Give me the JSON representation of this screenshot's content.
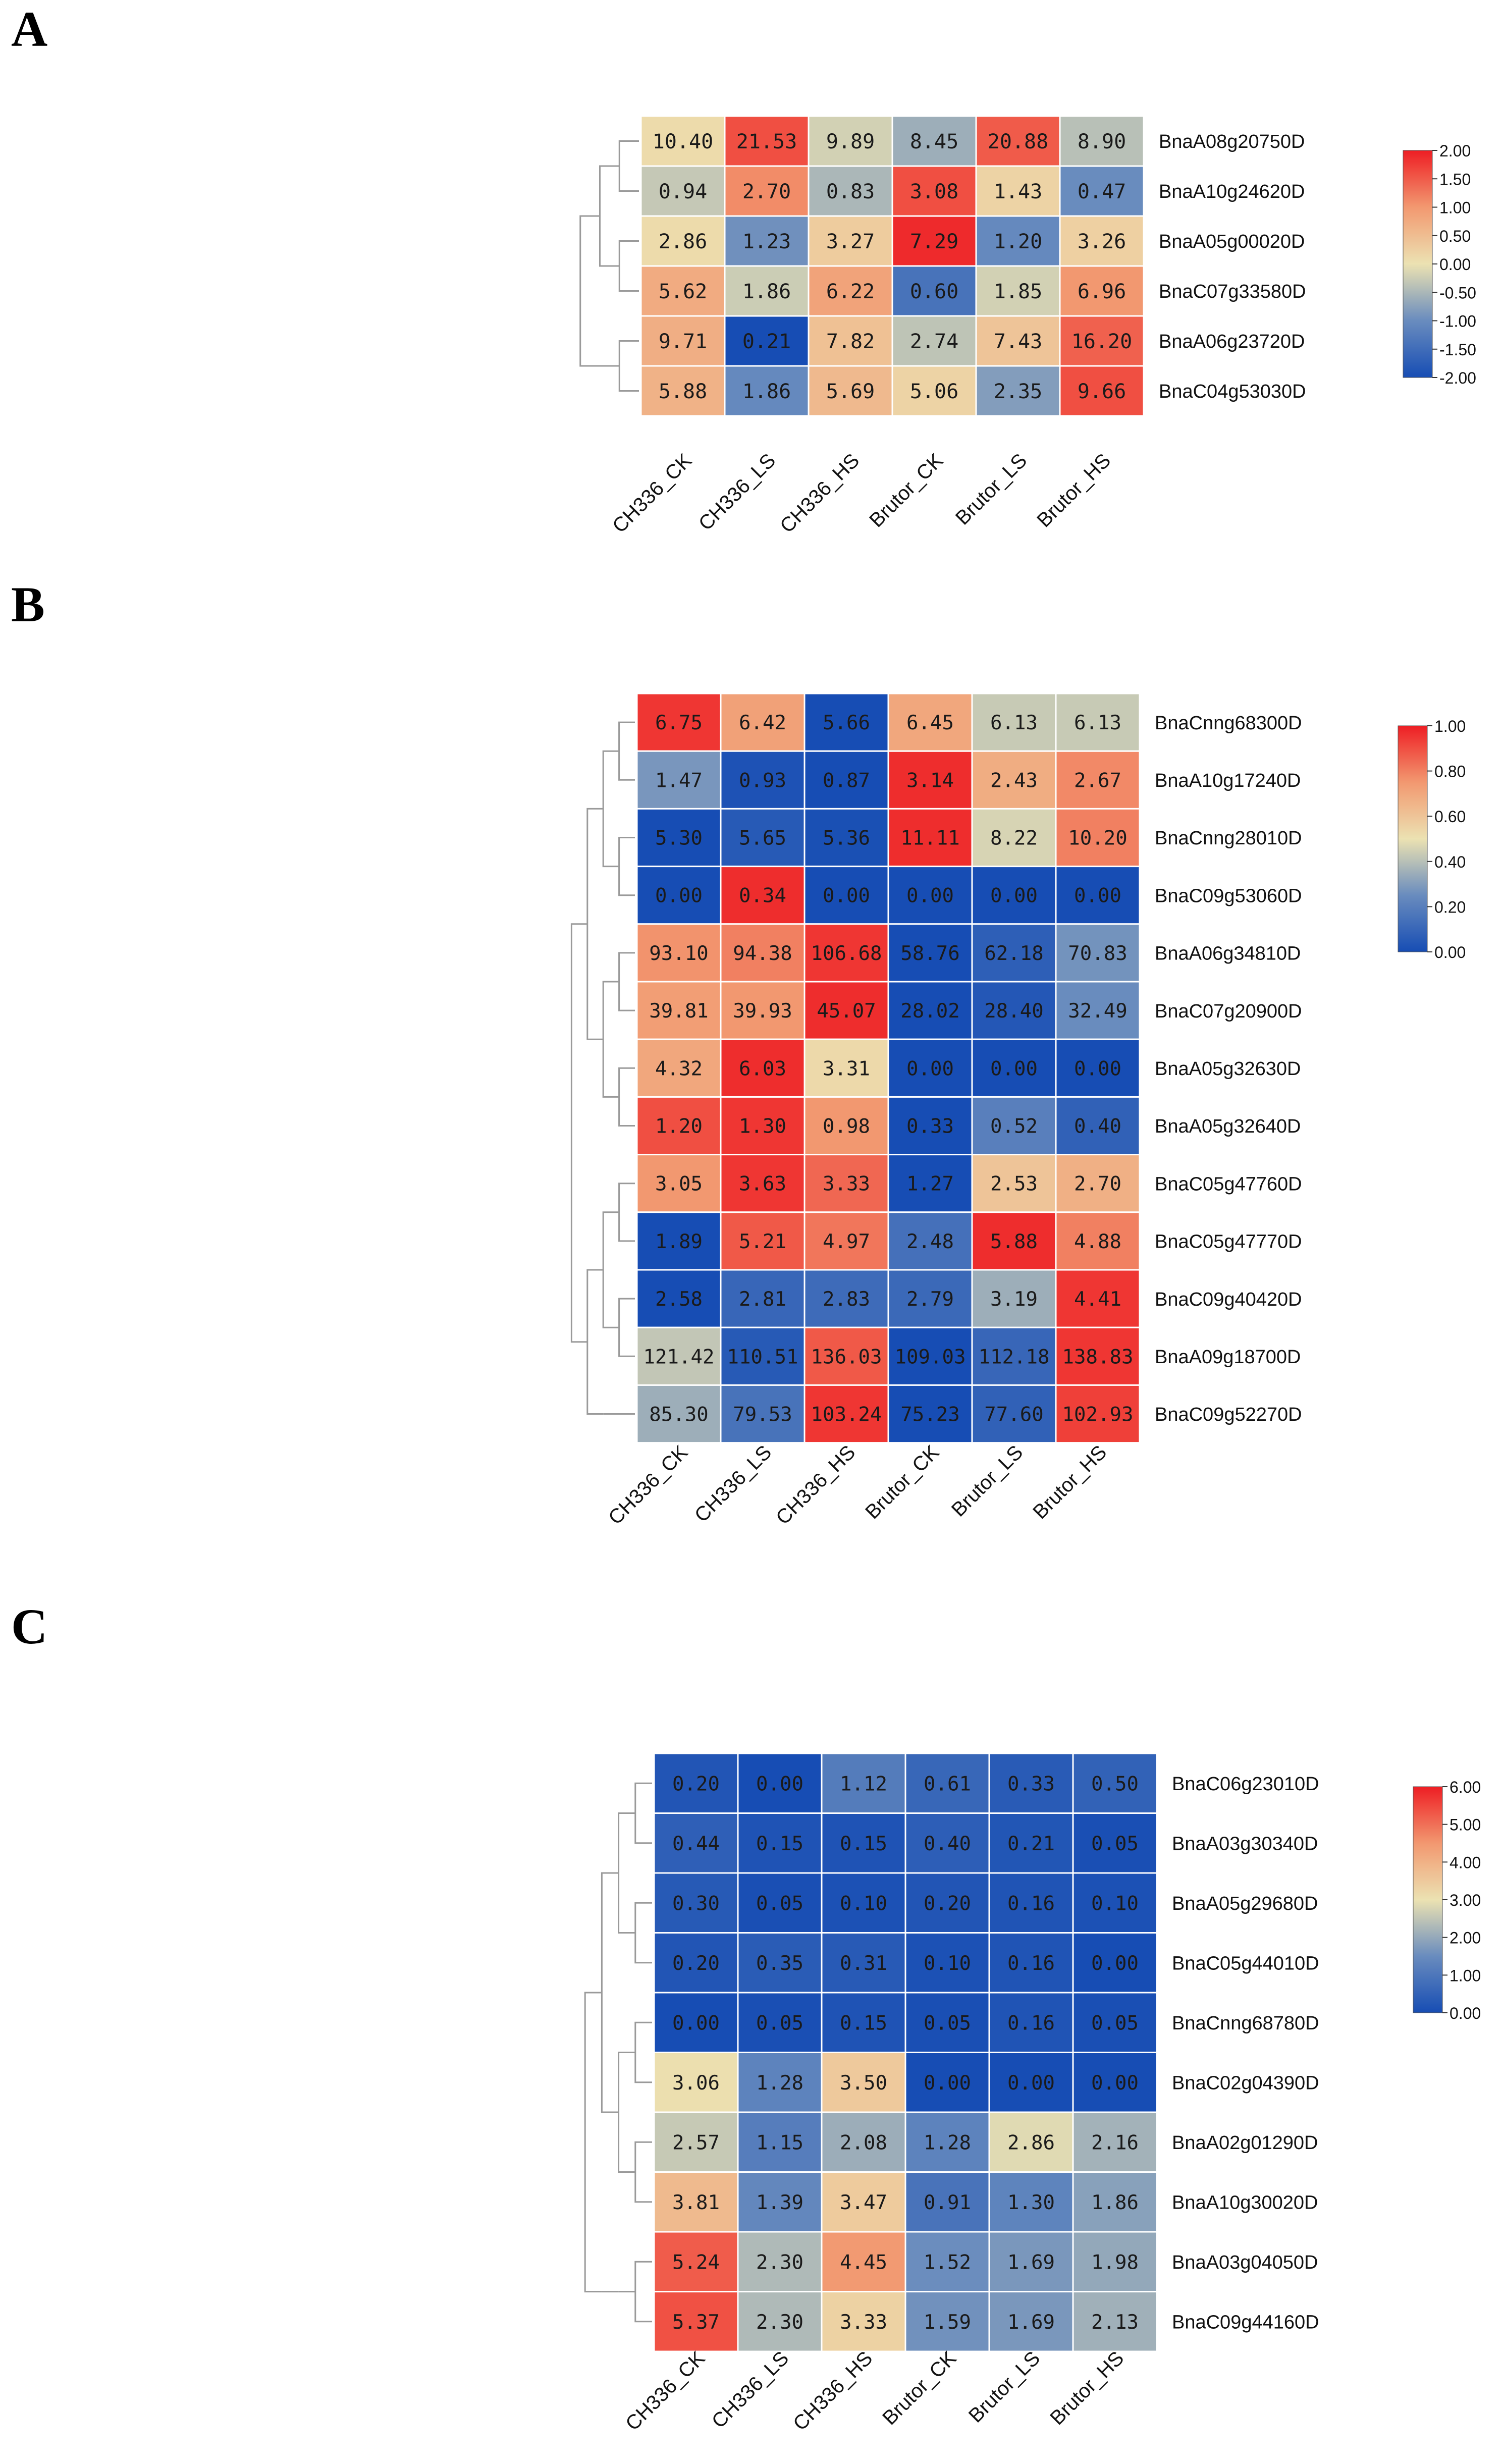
{
  "panels": [
    {
      "letter": "A"
    },
    {
      "letter": "B"
    },
    {
      "letter": "C"
    }
  ],
  "chart_data": [
    {
      "type": "heatmap",
      "panel": "A",
      "columns": [
        "CH336_CK",
        "CH336_LS",
        "CH336_HS",
        "Brutor_CK",
        "Brutor_LS",
        "Brutor_HS"
      ],
      "rows": [
        "BnaA08g20750D",
        "BnaA10g24620D",
        "BnaA05g00020D",
        "BnaC07g33580D",
        "BnaA06g23720D",
        "BnaC04g53030D"
      ],
      "values": [
        [
          "10.40",
          "21.53",
          "9.89",
          "8.45",
          "20.88",
          "8.90"
        ],
        [
          "0.94",
          "2.70",
          "0.83",
          "3.08",
          "1.43",
          "0.47"
        ],
        [
          "2.86",
          "1.23",
          "3.27",
          "7.29",
          "1.20",
          "3.26"
        ],
        [
          "5.62",
          "1.86",
          "6.22",
          "0.60",
          "1.85",
          "6.96"
        ],
        [
          "9.71",
          "0.21",
          "7.82",
          "2.74",
          "7.43",
          "16.20"
        ],
        [
          "5.88",
          "1.86",
          "5.69",
          "5.06",
          "2.35",
          "9.66"
        ]
      ],
      "color_scores": [
        [
          0.1,
          1.6,
          -0.2,
          -0.6,
          1.5,
          -0.4
        ],
        [
          -0.3,
          1.1,
          -0.5,
          1.6,
          0.2,
          -1.0
        ],
        [
          0.1,
          -0.95,
          0.3,
          1.9,
          -1.05,
          0.25
        ],
        [
          0.75,
          -0.25,
          0.85,
          -1.4,
          -0.2,
          1.0
        ],
        [
          0.7,
          -2.0,
          0.45,
          -0.35,
          0.4,
          1.45
        ],
        [
          0.65,
          -1.05,
          0.55,
          0.2,
          -0.8,
          1.6
        ]
      ],
      "colorbar": {
        "min": -2.0,
        "max": 2.0,
        "ticks": [
          "2.00",
          "1.50",
          "1.00",
          "0.50",
          "0.00",
          "-0.50",
          "-1.00",
          "-1.50",
          "-2.00"
        ]
      }
    },
    {
      "type": "heatmap",
      "panel": "B",
      "columns": [
        "CH336_CK",
        "CH336_LS",
        "CH336_HS",
        "Brutor_CK",
        "Brutor_LS",
        "Brutor_HS"
      ],
      "rows": [
        "BnaCnng68300D",
        "BnaA10g17240D",
        "BnaCnng28010D",
        "BnaC09g53060D",
        "BnaA06g34810D",
        "BnaC07g20900D",
        "BnaA05g32630D",
        "BnaA05g32640D",
        "BnaC05g47760D",
        "BnaC05g47770D",
        "BnaC09g40420D",
        "BnaA09g18700D",
        "BnaC09g52270D"
      ],
      "values": [
        [
          "6.75",
          "6.42",
          "5.66",
          "6.45",
          "6.13",
          "6.13"
        ],
        [
          "1.47",
          "0.93",
          "0.87",
          "3.14",
          "2.43",
          "2.67"
        ],
        [
          "5.30",
          "5.65",
          "5.36",
          "11.11",
          "8.22",
          "10.20"
        ],
        [
          "0.00",
          "0.34",
          "0.00",
          "0.00",
          "0.00",
          "0.00"
        ],
        [
          "93.10",
          "94.38",
          "106.68",
          "58.76",
          "62.18",
          "70.83"
        ],
        [
          "39.81",
          "39.93",
          "45.07",
          "28.02",
          "28.40",
          "32.49"
        ],
        [
          "4.32",
          "6.03",
          "3.31",
          "0.00",
          "0.00",
          "0.00"
        ],
        [
          "1.20",
          "1.30",
          "0.98",
          "0.33",
          "0.52",
          "0.40"
        ],
        [
          "3.05",
          "3.63",
          "3.33",
          "1.27",
          "2.53",
          "2.70"
        ],
        [
          "1.89",
          "5.21",
          "4.97",
          "2.48",
          "5.88",
          "4.88"
        ],
        [
          "2.58",
          "2.81",
          "2.83",
          "2.79",
          "3.19",
          "4.41"
        ],
        [
          "121.42",
          "110.51",
          "136.03",
          "109.03",
          "112.18",
          "138.83"
        ],
        [
          "85.30",
          "79.53",
          "103.24",
          "75.23",
          "77.60",
          "102.93"
        ]
      ],
      "color_scores": [
        [
          0.95,
          0.72,
          0.0,
          0.7,
          0.43,
          0.43
        ],
        [
          0.28,
          0.02,
          0.0,
          0.97,
          0.68,
          0.78
        ],
        [
          0.0,
          0.05,
          0.01,
          0.97,
          0.46,
          0.8
        ],
        [
          0.0,
          0.97,
          0.0,
          0.0,
          0.0,
          0.0
        ],
        [
          0.76,
          0.8,
          0.95,
          0.0,
          0.07,
          0.27
        ],
        [
          0.73,
          0.75,
          0.97,
          0.0,
          0.04,
          0.25
        ],
        [
          0.7,
          0.97,
          0.53,
          0.0,
          0.0,
          0.0
        ],
        [
          0.9,
          0.95,
          0.75,
          0.0,
          0.2,
          0.08
        ],
        [
          0.75,
          0.95,
          0.85,
          0.0,
          0.6,
          0.67
        ],
        [
          0.0,
          0.88,
          0.82,
          0.14,
          0.97,
          0.8
        ],
        [
          0.0,
          0.1,
          0.12,
          0.11,
          0.35,
          0.95
        ],
        [
          0.42,
          0.05,
          0.88,
          0.0,
          0.1,
          0.95
        ],
        [
          0.35,
          0.15,
          0.95,
          0.0,
          0.08,
          0.93
        ]
      ],
      "colorbar": {
        "min": 0.0,
        "max": 1.0,
        "ticks": [
          "1.00",
          "0.80",
          "0.60",
          "0.40",
          "0.20",
          "0.00"
        ]
      }
    },
    {
      "type": "heatmap",
      "panel": "C",
      "columns": [
        "CH336_CK",
        "CH336_LS",
        "CH336_HS",
        "Brutor_CK",
        "Brutor_LS",
        "Brutor_HS"
      ],
      "rows": [
        "BnaC06g23010D",
        "BnaA03g30340D",
        "BnaA05g29680D",
        "BnaC05g44010D",
        "BnaCnng68780D",
        "BnaC02g04390D",
        "BnaA02g01290D",
        "BnaA10g30020D",
        "BnaA03g04050D",
        "BnaC09g44160D"
      ],
      "values": [
        [
          "0.20",
          "0.00",
          "1.12",
          "0.61",
          "0.33",
          "0.50"
        ],
        [
          "0.44",
          "0.15",
          "0.15",
          "0.40",
          "0.21",
          "0.05"
        ],
        [
          "0.30",
          "0.05",
          "0.10",
          "0.20",
          "0.16",
          "0.10"
        ],
        [
          "0.20",
          "0.35",
          "0.31",
          "0.10",
          "0.16",
          "0.00"
        ],
        [
          "0.00",
          "0.05",
          "0.15",
          "0.05",
          "0.16",
          "0.05"
        ],
        [
          "3.06",
          "1.28",
          "3.50",
          "0.00",
          "0.00",
          "0.00"
        ],
        [
          "2.57",
          "1.15",
          "2.08",
          "1.28",
          "2.86",
          "2.16"
        ],
        [
          "3.81",
          "1.39",
          "3.47",
          "0.91",
          "1.30",
          "1.86"
        ],
        [
          "5.24",
          "2.30",
          "4.45",
          "1.52",
          "1.69",
          "1.98"
        ],
        [
          "5.37",
          "2.30",
          "3.33",
          "1.59",
          "1.69",
          "2.13"
        ]
      ],
      "color_scores": [
        [
          0.2,
          0.0,
          1.12,
          0.61,
          0.33,
          0.5
        ],
        [
          0.44,
          0.15,
          0.15,
          0.4,
          0.21,
          0.05
        ],
        [
          0.3,
          0.05,
          0.1,
          0.2,
          0.16,
          0.1
        ],
        [
          0.2,
          0.35,
          0.31,
          0.1,
          0.16,
          0.0
        ],
        [
          0.0,
          0.05,
          0.15,
          0.05,
          0.16,
          0.05
        ],
        [
          3.06,
          1.28,
          3.5,
          0.0,
          0.0,
          0.0
        ],
        [
          2.57,
          1.15,
          2.08,
          1.28,
          2.86,
          2.16
        ],
        [
          3.81,
          1.39,
          3.47,
          0.91,
          1.3,
          1.86
        ],
        [
          5.24,
          2.3,
          4.45,
          1.52,
          1.69,
          1.98
        ],
        [
          5.37,
          2.3,
          3.33,
          1.59,
          1.69,
          2.13
        ]
      ],
      "colorbar": {
        "min": 0.0,
        "max": 6.0,
        "ticks": [
          "6.00",
          "5.00",
          "4.00",
          "3.00",
          "2.00",
          "1.00",
          "0.00"
        ]
      }
    }
  ]
}
